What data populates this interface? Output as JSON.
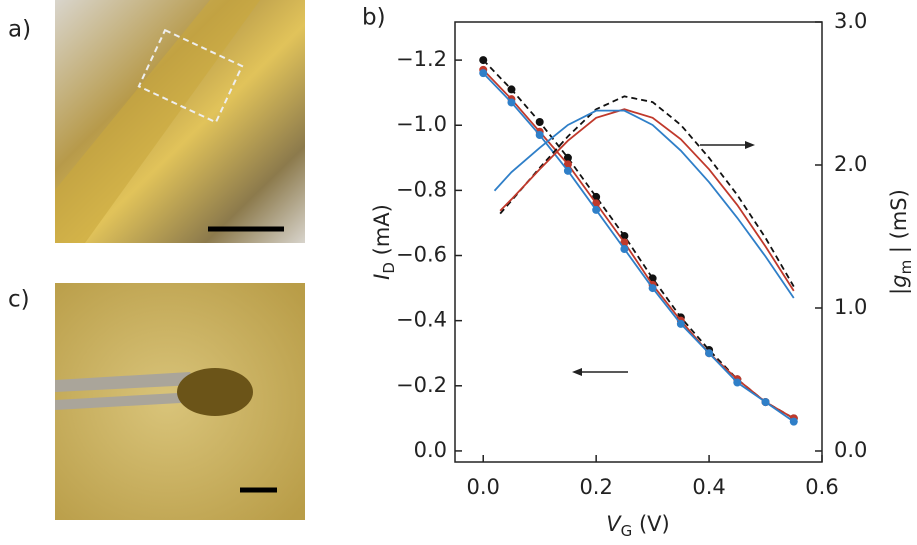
{
  "panels": [
    "a)",
    "b)",
    "c)"
  ],
  "chart_data": {
    "type": "scatter",
    "x_label": {
      "main": "V",
      "sub": "G",
      "unit": "(V)"
    },
    "y_label": {
      "main": "I",
      "sub": "D",
      "unit": "(mA)"
    },
    "y2_label": {
      "open": "|",
      "main": "g",
      "sub": "m",
      "unit": "| (mS)"
    },
    "x": [
      0,
      0.05,
      0.1,
      0.15,
      0.2,
      0.25,
      0.3,
      0.35,
      0.4,
      0.45,
      0.5,
      0.55
    ],
    "xlim": [
      -0.05,
      0.6
    ],
    "xticks": [
      {
        "value": 0,
        "label": "0.0"
      },
      0.2,
      0.4,
      0.6
    ],
    "ylim": [
      0.034,
      -1.317
    ],
    "yticks": [
      {
        "value": 0,
        "label": "0.0"
      },
      {
        "value": -0.2,
        "label": "−0.2"
      },
      {
        "value": -0.4,
        "label": "−0.4"
      },
      {
        "value": -0.6,
        "label": "−0.6"
      },
      {
        "value": -0.8,
        "label": "−0.8"
      },
      {
        "value": -1.0,
        "label": "−1.0"
      },
      {
        "value": -1.2,
        "label": "−1.2"
      }
    ],
    "y2lim": [
      -0.077,
      3.0
    ],
    "y2ticks": [
      {
        "value": 0,
        "label": "0.0"
      },
      {
        "value": 1,
        "label": "1.0"
      },
      {
        "value": 2,
        "label": "2.0"
      },
      {
        "value": 3,
        "label": "3.0"
      }
    ],
    "series": [
      {
        "color": "#111111",
        "dash": true,
        "values": [
          -1.2,
          -1.11,
          -1.01,
          -0.9,
          -0.78,
          -0.66,
          -0.53,
          -0.41,
          -0.31,
          -0.22,
          -0.15,
          -0.1
        ]
      },
      {
        "color": "#c0392b",
        "values": [
          -1.17,
          -1.08,
          -0.98,
          -0.88,
          -0.76,
          -0.64,
          -0.51,
          -0.4,
          -0.3,
          -0.22,
          -0.15,
          -0.1
        ]
      },
      {
        "color": "#2f7fc8",
        "values": [
          -1.16,
          -1.07,
          -0.97,
          -0.86,
          -0.74,
          -0.62,
          -0.5,
          -0.39,
          -0.3,
          -0.21,
          -0.15,
          -0.09
        ]
      },
      {
        "color": "#111111",
        "dash": true,
        "axis": "y2",
        "x": [
          0.03,
          0.05,
          0.1,
          0.15,
          0.2,
          0.25,
          0.3,
          0.35,
          0.4,
          0.45,
          0.5,
          0.55
        ],
        "values": [
          1.66,
          1.75,
          1.98,
          2.2,
          2.39,
          2.48,
          2.44,
          2.28,
          2.05,
          1.79,
          1.49,
          1.15
        ]
      },
      {
        "color": "#c0392b",
        "axis": "y2",
        "x": [
          0.03,
          0.05,
          0.1,
          0.15,
          0.2,
          0.25,
          0.3,
          0.35,
          0.4,
          0.45,
          0.5,
          0.55
        ],
        "values": [
          1.68,
          1.76,
          1.97,
          2.17,
          2.33,
          2.39,
          2.33,
          2.18,
          1.97,
          1.72,
          1.43,
          1.12
        ]
      },
      {
        "color": "#2f7fc8",
        "axis": "y2",
        "x": [
          0.02,
          0.05,
          0.1,
          0.15,
          0.2,
          0.25,
          0.3,
          0.35,
          0.4,
          0.45,
          0.5,
          0.55
        ],
        "values": [
          1.82,
          1.95,
          2.12,
          2.28,
          2.38,
          2.38,
          2.28,
          2.1,
          1.88,
          1.63,
          1.36,
          1.07
        ]
      }
    ]
  }
}
